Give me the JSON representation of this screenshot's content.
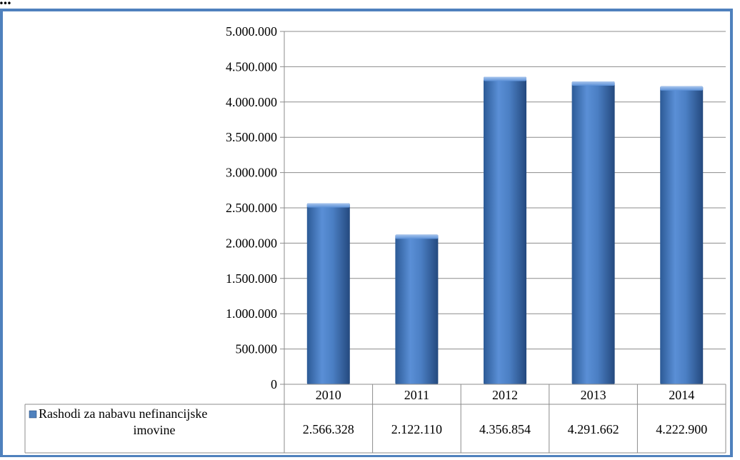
{
  "header": {
    "caption": "..."
  },
  "chart_data": {
    "type": "bar",
    "categories": [
      "2010",
      "2011",
      "2012",
      "2013",
      "2014"
    ],
    "series": [
      {
        "name": "Rashodi za nabavu nefinancijske imovine",
        "values": [
          2566328,
          2122110,
          4356854,
          4291662,
          4222900
        ],
        "value_labels": [
          "2.566.328",
          "2.122.110",
          "4.356.854",
          "4.291.662",
          "4.222.900"
        ],
        "color": "#4f81bd"
      }
    ],
    "y_ticks": [
      "0",
      "500.000",
      "1.000.000",
      "1.500.000",
      "2.000.000",
      "2.500.000",
      "3.000.000",
      "3.500.000",
      "4.000.000",
      "4.500.000",
      "5.000.000"
    ],
    "ylim": [
      0,
      5000000
    ],
    "grid": true,
    "legend": "data-table-left",
    "data_table": true,
    "colors": {
      "frame": "#4f81bd",
      "bar": "#4f81bd",
      "grid": "#8c8c8c"
    }
  }
}
